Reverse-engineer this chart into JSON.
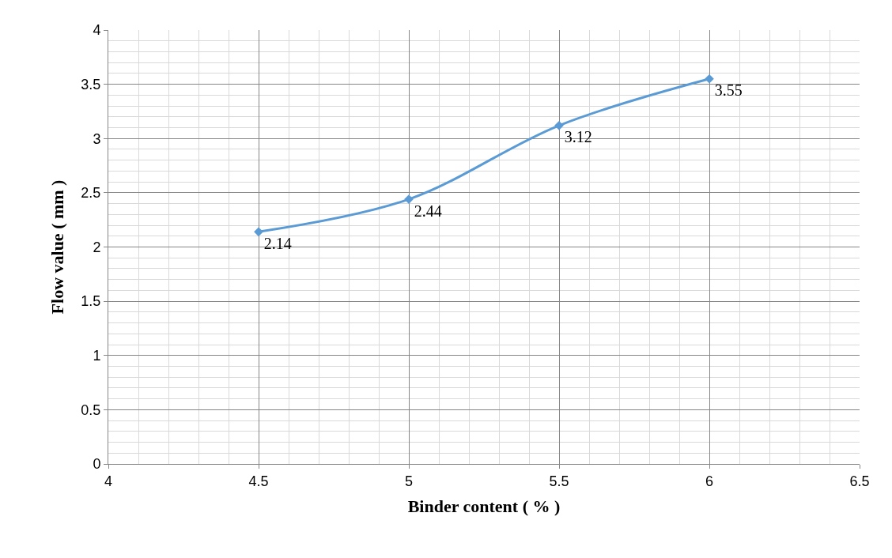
{
  "chart_data": {
    "type": "line",
    "xlabel": "Binder content ( % )",
    "ylabel": "Flow value ( mm )",
    "x": [
      4.5,
      5,
      5.5,
      6
    ],
    "series": [
      {
        "color": "#5b9bd5",
        "values": [
          2.14,
          2.44,
          3.12,
          3.55
        ]
      }
    ],
    "xlim": [
      4,
      6.5
    ],
    "xticks": [
      4,
      4.5,
      5,
      5.5,
      6,
      6.5
    ],
    "ylim": [
      0,
      4
    ],
    "yticks": [
      0,
      0.5,
      1,
      1.5,
      2,
      2.5,
      3,
      3.5,
      4
    ],
    "grid": true,
    "legend": false,
    "marker": "diamond",
    "line_style": "solid",
    "data_labels": true
  }
}
